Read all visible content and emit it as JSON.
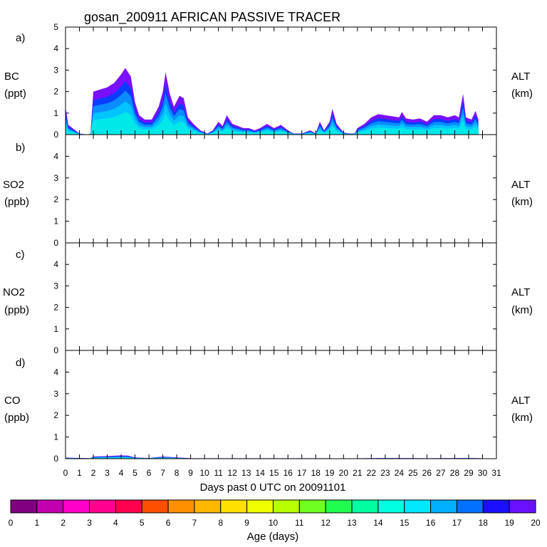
{
  "chart_data": {
    "type": "area",
    "title": "gosan_200911 AFRICAN PASSIVE TRACER",
    "xlabel": "Days past 0 UTC on 20091101",
    "xlim": [
      0,
      31
    ],
    "x_ticks": [
      0,
      1,
      2,
      3,
      4,
      5,
      6,
      7,
      8,
      9,
      10,
      11,
      12,
      13,
      14,
      15,
      16,
      17,
      18,
      19,
      20,
      21,
      22,
      23,
      24,
      25,
      26,
      27,
      28,
      29,
      30,
      31
    ],
    "panels": [
      {
        "tag": "a)",
        "ylabel": "BC",
        "unit": "(ppt)",
        "right_label": "ALT",
        "right_unit": "(km)",
        "ylim": [
          0,
          5
        ],
        "y_ticks": [
          0,
          1,
          2,
          3,
          4,
          5
        ],
        "total": [
          [
            0.0,
            1.3
          ],
          [
            0.2,
            0.45
          ],
          [
            0.5,
            0.3
          ],
          [
            1.0,
            0.05
          ],
          [
            1.6,
            0.0
          ],
          [
            1.8,
            0.05
          ],
          [
            2.0,
            2.0
          ],
          [
            2.5,
            2.1
          ],
          [
            3.0,
            2.2
          ],
          [
            3.5,
            2.4
          ],
          [
            4.0,
            2.8
          ],
          [
            4.3,
            3.1
          ],
          [
            4.7,
            2.7
          ],
          [
            5.0,
            1.5
          ],
          [
            5.3,
            0.9
          ],
          [
            5.7,
            0.7
          ],
          [
            6.2,
            0.7
          ],
          [
            6.7,
            1.3
          ],
          [
            7.0,
            2.0
          ],
          [
            7.2,
            2.9
          ],
          [
            7.5,
            1.9
          ],
          [
            7.8,
            1.3
          ],
          [
            8.2,
            1.8
          ],
          [
            8.5,
            1.7
          ],
          [
            8.8,
            0.8
          ],
          [
            9.2,
            0.5
          ],
          [
            9.7,
            0.2
          ],
          [
            10.2,
            0.05
          ],
          [
            10.6,
            0.2
          ],
          [
            11.0,
            0.6
          ],
          [
            11.3,
            0.4
          ],
          [
            11.6,
            0.9
          ],
          [
            12.0,
            0.5
          ],
          [
            12.4,
            0.4
          ],
          [
            12.8,
            0.3
          ],
          [
            13.2,
            0.3
          ],
          [
            13.6,
            0.2
          ],
          [
            14.0,
            0.3
          ],
          [
            14.5,
            0.5
          ],
          [
            15.0,
            0.3
          ],
          [
            15.5,
            0.45
          ],
          [
            16.0,
            0.2
          ],
          [
            16.4,
            0.05
          ],
          [
            17.0,
            0.05
          ],
          [
            17.6,
            0.2
          ],
          [
            18.0,
            0.05
          ],
          [
            18.3,
            0.6
          ],
          [
            18.6,
            0.2
          ],
          [
            19.0,
            0.6
          ],
          [
            19.2,
            1.2
          ],
          [
            19.5,
            0.5
          ],
          [
            20.0,
            0.1
          ],
          [
            20.4,
            0.05
          ],
          [
            20.8,
            0.05
          ],
          [
            21.0,
            0.3
          ],
          [
            21.5,
            0.5
          ],
          [
            22.0,
            0.8
          ],
          [
            22.5,
            0.95
          ],
          [
            23.0,
            0.9
          ],
          [
            23.5,
            0.85
          ],
          [
            24.0,
            0.8
          ],
          [
            24.2,
            1.05
          ],
          [
            24.5,
            0.75
          ],
          [
            25.0,
            0.7
          ],
          [
            25.5,
            0.75
          ],
          [
            26.0,
            0.6
          ],
          [
            26.5,
            0.9
          ],
          [
            27.0,
            0.9
          ],
          [
            27.5,
            0.8
          ],
          [
            28.0,
            0.9
          ],
          [
            28.3,
            0.8
          ],
          [
            28.6,
            1.9
          ],
          [
            28.8,
            0.8
          ],
          [
            29.2,
            0.7
          ],
          [
            29.5,
            1.1
          ],
          [
            29.7,
            0.7
          ]
        ]
      },
      {
        "tag": "b)",
        "ylabel": "SO2",
        "unit": "(ppb)",
        "right_label": "ALT",
        "right_unit": "(km)",
        "ylim": [
          0,
          5
        ],
        "y_ticks": [
          0,
          1,
          2,
          3,
          4
        ],
        "total": []
      },
      {
        "tag": "c)",
        "ylabel": "NO2",
        "unit": "(ppb)",
        "right_label": "ALT",
        "right_unit": "(km)",
        "ylim": [
          0,
          5
        ],
        "y_ticks": [
          0,
          1,
          2,
          3,
          4
        ],
        "total": []
      },
      {
        "tag": "d)",
        "ylabel": "CO",
        "unit": "(ppb)",
        "right_label": "ALT",
        "right_unit": "(km)",
        "ylim": [
          0,
          5
        ],
        "y_ticks": [
          0,
          1,
          2,
          3,
          4
        ],
        "total": [
          [
            0.0,
            0.05
          ],
          [
            1.8,
            0.02
          ],
          [
            2.0,
            0.1
          ],
          [
            3.0,
            0.12
          ],
          [
            4.0,
            0.15
          ],
          [
            4.5,
            0.14
          ],
          [
            5.0,
            0.06
          ],
          [
            6.0,
            0.03
          ],
          [
            7.0,
            0.1
          ],
          [
            7.5,
            0.08
          ],
          [
            8.5,
            0.04
          ],
          [
            9.0,
            0.02
          ],
          [
            19.0,
            0.02
          ],
          [
            20.0,
            0.01
          ],
          [
            23.0,
            0.03
          ],
          [
            26.0,
            0.02
          ],
          [
            29.0,
            0.03
          ],
          [
            30.0,
            0.02
          ]
        ]
      }
    ],
    "colorbar": {
      "label": "Age (days)",
      "ticks": [
        0,
        1,
        2,
        3,
        4,
        5,
        6,
        7,
        8,
        9,
        10,
        11,
        12,
        13,
        14,
        15,
        16,
        17,
        18,
        19,
        20
      ],
      "colors": [
        "#80007f",
        "#c000b0",
        "#ff00c8",
        "#ff0090",
        "#ff0050",
        "#ff5000",
        "#ff9000",
        "#ffb800",
        "#ffe000",
        "#f0ff00",
        "#b8ff00",
        "#70ff20",
        "#20ff50",
        "#00ffa0",
        "#00ffe0",
        "#00e8ff",
        "#00b0ff",
        "#0070ff",
        "#1a10ff",
        "#6a10ff"
      ]
    }
  }
}
